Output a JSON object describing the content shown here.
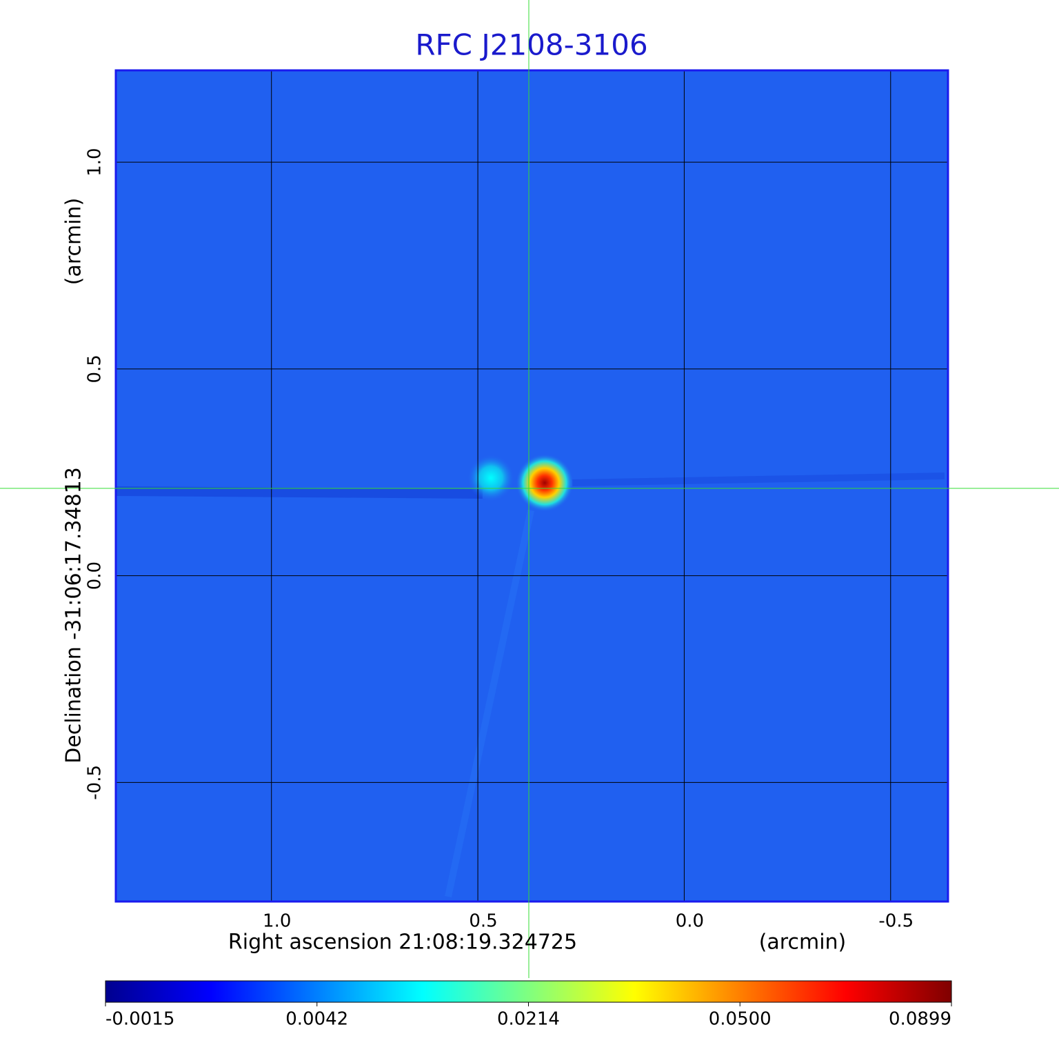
{
  "chart_data": {
    "type": "image",
    "title": "RFC J2108-3106",
    "xlabel": "Right ascension  21:08:19.324725",
    "xunit": "(arcmin)",
    "ylabel": "Declination  -31:06:17.34813",
    "yunit": "(arcmin)",
    "xlim": [
      1.377,
      -0.639
    ],
    "ylim": [
      -0.788,
      1.222
    ],
    "xticks": [
      {
        "value": 1,
        "label": "1.0"
      },
      {
        "value": 0.5,
        "label": "0.5"
      },
      {
        "value": 0,
        "label": "0.0"
      },
      {
        "value": -0.5,
        "label": "-0.5"
      }
    ],
    "yticks": [
      {
        "value": 1,
        "label": "1.0"
      },
      {
        "value": 0.5,
        "label": "0.5"
      },
      {
        "value": 0,
        "label": "0.0"
      },
      {
        "value": -0.5,
        "label": "-0.5"
      }
    ],
    "grid": true,
    "colormap": "jet",
    "colorbar_ticks": [
      -0.0015,
      0.0042,
      0.0214,
      {
        "value": 0.05,
        "label": "0.0500"
      },
      0.0899
    ]
  }
}
